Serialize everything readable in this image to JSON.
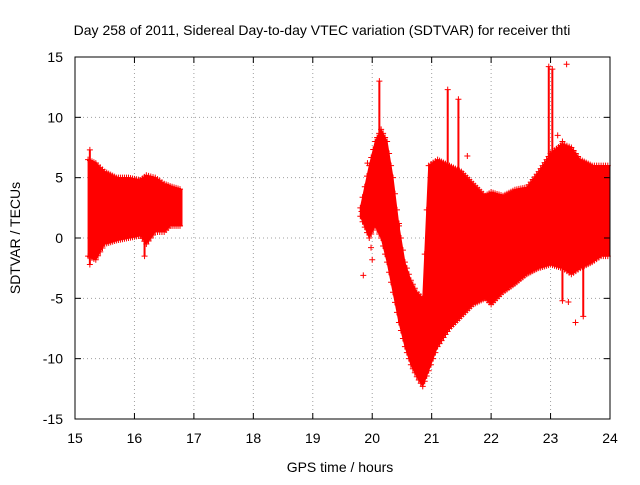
{
  "chart_data": {
    "type": "scatter",
    "title": "Day 258 of 2011, Sidereal Day-to-day VTEC variation (SDTVAR) for receiver thti",
    "xlabel": "GPS time / hours",
    "ylabel": "SDTVAR / TECUs",
    "xlim": [
      15,
      24
    ],
    "ylim": [
      -15,
      15
    ],
    "x_ticks": [
      15,
      16,
      17,
      18,
      19,
      20,
      21,
      22,
      23,
      24
    ],
    "y_ticks": [
      -15,
      -10,
      -5,
      0,
      5,
      10,
      15
    ],
    "x_tick_labels": [
      "15",
      "16",
      "17",
      "18",
      "19",
      "20",
      "21",
      "22",
      "23",
      "24"
    ],
    "y_tick_labels": [
      "-15",
      "-10",
      "-5",
      "0",
      "5",
      "10",
      "15"
    ],
    "grid": true,
    "marker": "+",
    "colors": {
      "series": "#ff0000",
      "grid": "#a0a0a0",
      "axis": "#000000"
    },
    "series": [
      {
        "envelope": [
          [
            15.22,
            -1.5,
            6.5
          ],
          [
            15.35,
            -1.8,
            6.2
          ],
          [
            15.5,
            -0.5,
            5.5
          ],
          [
            15.7,
            -0.2,
            5.0
          ],
          [
            15.9,
            0.0,
            5.0
          ],
          [
            16.1,
            0.2,
            4.8
          ],
          [
            16.2,
            -0.5,
            5.2
          ],
          [
            16.35,
            0.5,
            5.0
          ],
          [
            16.5,
            0.5,
            4.5
          ],
          [
            16.6,
            1.0,
            4.3
          ],
          [
            16.8,
            1.0,
            4.0
          ],
          [
            19.8,
            1.8,
            2.5
          ],
          [
            19.95,
            0.0,
            6.0
          ],
          [
            20.05,
            1.0,
            8.0
          ],
          [
            20.15,
            0.0,
            9.0
          ],
          [
            20.25,
            -2.0,
            8.0
          ],
          [
            20.35,
            -4.5,
            5.0
          ],
          [
            20.45,
            -7.0,
            1.0
          ],
          [
            20.55,
            -9.0,
            -2.0
          ],
          [
            20.65,
            -10.5,
            -3.5
          ],
          [
            20.75,
            -11.5,
            -4.5
          ],
          [
            20.85,
            -12.3,
            -5.0
          ],
          [
            20.95,
            -11.0,
            6.0
          ],
          [
            21.1,
            -9.0,
            6.5
          ],
          [
            21.3,
            -7.5,
            6.0
          ],
          [
            21.5,
            -6.5,
            5.5
          ],
          [
            21.7,
            -5.5,
            4.5
          ],
          [
            21.9,
            -5.0,
            3.5
          ],
          [
            22.0,
            -5.5,
            3.8
          ],
          [
            22.2,
            -4.5,
            3.5
          ],
          [
            22.4,
            -3.8,
            4.0
          ],
          [
            22.6,
            -3.0,
            4.2
          ],
          [
            22.8,
            -2.5,
            5.5
          ],
          [
            23.0,
            -2.2,
            7.0
          ],
          [
            23.2,
            -2.5,
            7.8
          ],
          [
            23.35,
            -3.0,
            7.5
          ],
          [
            23.5,
            -2.5,
            6.5
          ],
          [
            23.7,
            -2.0,
            6.0
          ],
          [
            23.85,
            -1.5,
            6.0
          ],
          [
            24.0,
            -1.5,
            6.0
          ]
        ]
      }
    ],
    "spikes": [
      [
        15.25,
        -2.2,
        7.3
      ],
      [
        16.17,
        -1.5,
        5.0
      ],
      [
        20.12,
        1.0,
        13.0
      ],
      [
        20.45,
        -7.0,
        1.2
      ],
      [
        21.27,
        -0.5,
        12.3
      ],
      [
        21.45,
        3.0,
        11.5
      ],
      [
        22.97,
        -0.5,
        14.2
      ],
      [
        23.03,
        -2.0,
        14.0
      ],
      [
        23.2,
        -5.2,
        8.0
      ],
      [
        23.55,
        -6.5,
        6.0
      ]
    ],
    "outliers": [
      [
        19.82,
        2.2
      ],
      [
        19.85,
        -3.1
      ],
      [
        19.88,
        1.5
      ],
      [
        19.92,
        6.2
      ],
      [
        19.98,
        -0.8
      ],
      [
        20.0,
        -1.8
      ],
      [
        20.08,
        3.0
      ],
      [
        20.18,
        4.5
      ],
      [
        21.35,
        4.2
      ],
      [
        21.6,
        6.8
      ],
      [
        23.27,
        14.4
      ],
      [
        23.3,
        -5.3
      ],
      [
        23.42,
        -7.0
      ],
      [
        23.12,
        8.5
      ]
    ]
  }
}
